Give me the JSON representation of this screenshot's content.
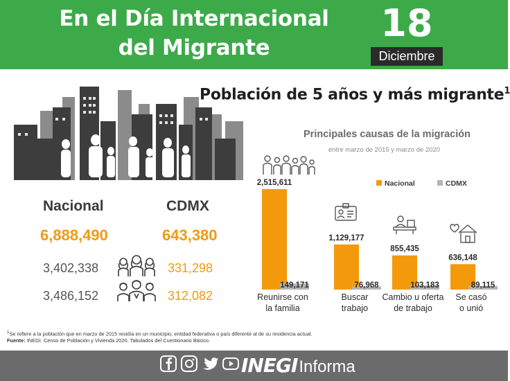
{
  "header": {
    "title_line1": "En el Día Internacional",
    "title_line2": "del Migrante",
    "day": "18",
    "month": "Diciembre"
  },
  "section_title": "Población de 5 años y más migrante",
  "section_title_note": "1",
  "stats": {
    "nacional_label": "Nacional",
    "cdmx_label": "CDMX",
    "nacional_total": "6,888,490",
    "cdmx_total": "643,380",
    "nacional_mujeres": "3,402,338",
    "cdmx_mujeres": "331,298",
    "nacional_hombres": "3,486,152",
    "cdmx_hombres": "312,082",
    "icon_women": "women-group-icon",
    "icon_men": "men-group-icon"
  },
  "chart_data": {
    "type": "bar",
    "title": "Principales causas de la migración",
    "subtitle": "entre marzo de 2015 y marzo de 2020",
    "categories": [
      "Reunirse con la familia",
      "Buscar trabajo",
      "Cambio u oferta de trabajo",
      "Se casó o unió"
    ],
    "category_lines": [
      [
        "Reunirse con",
        "la familia"
      ],
      [
        "Buscar",
        "trabajo"
      ],
      [
        "Cambio u oferta",
        "de trabajo"
      ],
      [
        "Se casó",
        "o unió"
      ]
    ],
    "series": [
      {
        "name": "Nacional",
        "values": [
          2515611,
          1129177,
          855435,
          636148
        ],
        "labels": [
          "2,515,611",
          "1,129,177",
          "855,435",
          "636,148"
        ],
        "color": "#f39a0c"
      },
      {
        "name": "CDMX",
        "values": [
          149171,
          76968,
          103183,
          89115
        ],
        "labels": [
          "149,171",
          "76,968",
          "103,183",
          "89,115"
        ],
        "color": "#b3b3b3"
      }
    ],
    "icons": [
      "family-icon",
      "id-card-icon",
      "office-icon",
      "heart-house-icon"
    ],
    "legend_position": "top-right",
    "grid": false
  },
  "notes": {
    "note1_mark": "1",
    "note1": "Se refiere a la población que en marzo de 2015 residía en un municipio, entidad federativa o país diferente al de su residencia actual.",
    "source_label": "Fuente:",
    "source": " INEGI. Censo de Población y Vivienda 2020. Tabulados del Cuestionario Básico."
  },
  "footer": {
    "social_icons": [
      "facebook-icon",
      "instagram-icon",
      "twitter-icon",
      "youtube-icon"
    ],
    "brand_bold": "INEGI",
    "brand_regular": "Informa"
  },
  "colors": {
    "green": "#3daa4a",
    "orange": "#f09a12",
    "gray_bar": "#b3b3b3",
    "footer_gray": "#6c6b6b",
    "date_black": "#2a2a2a"
  }
}
